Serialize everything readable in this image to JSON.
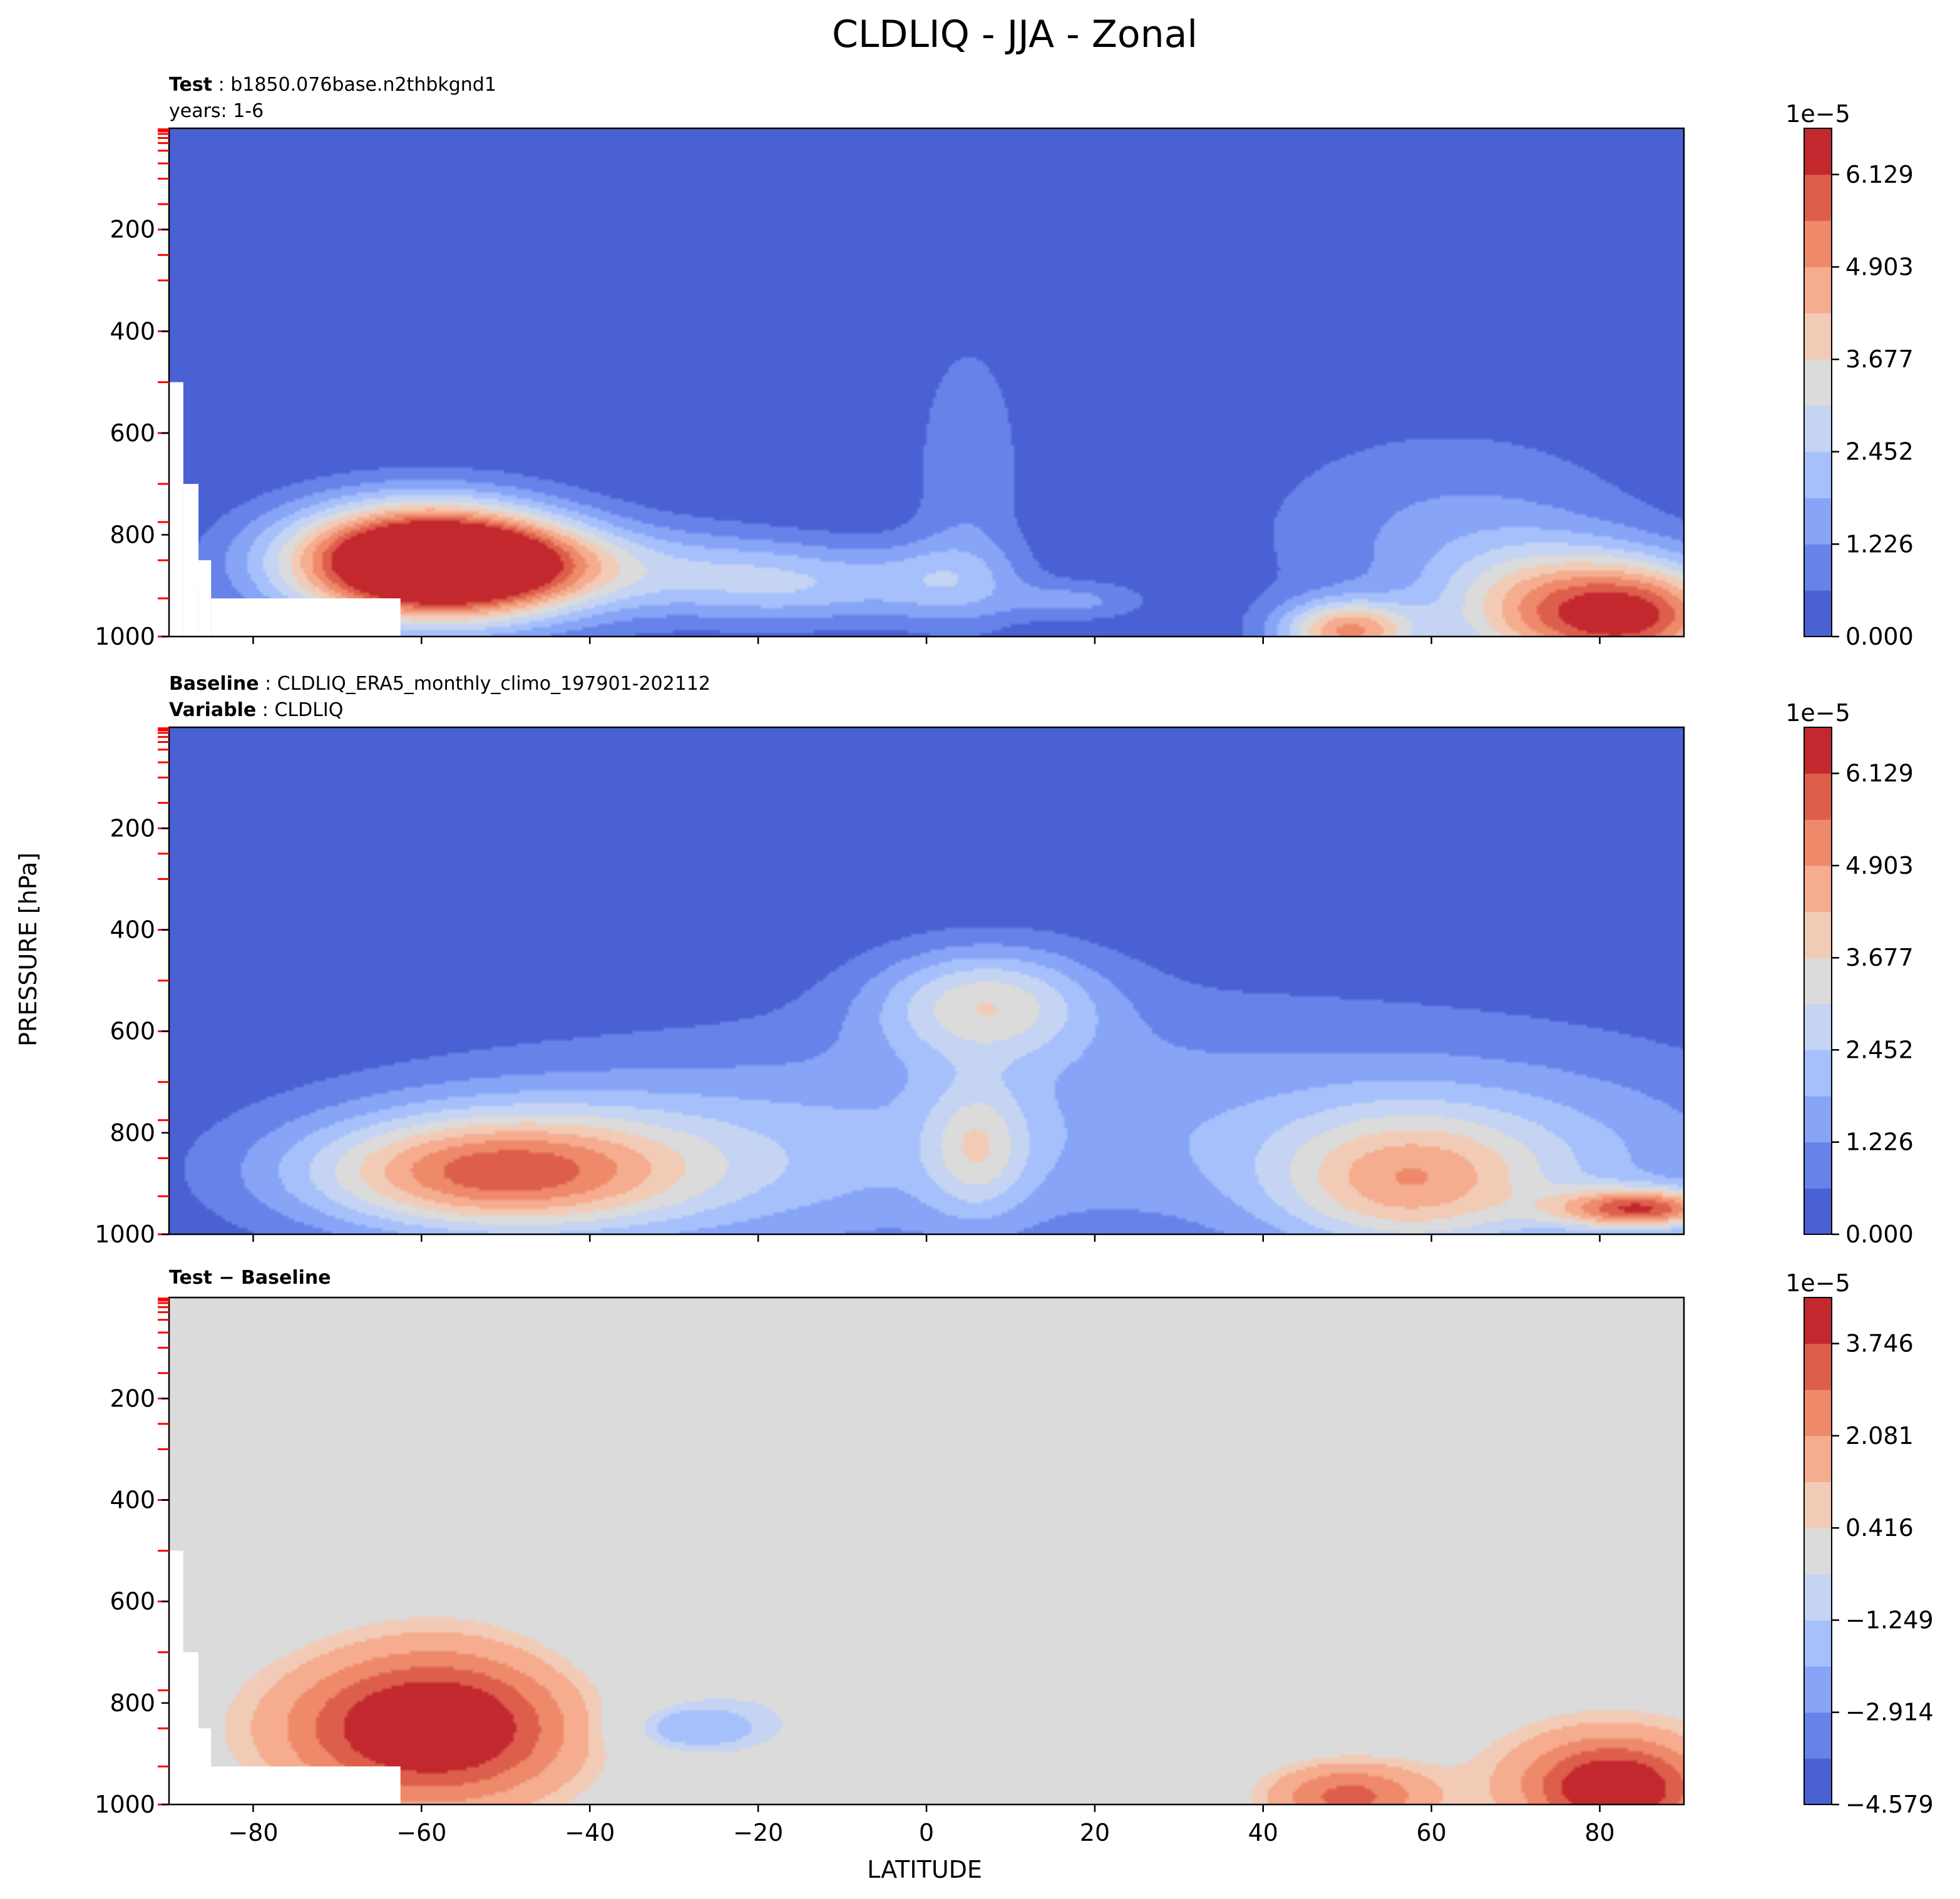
{
  "figure": {
    "title": "CLDLIQ - JJA - Zonal",
    "xlabel": "LATITUDE",
    "ylabel": "PRESSURE [hPa]"
  },
  "chart_data": [
    {
      "type": "heatmap",
      "id": "test",
      "header": [
        {
          "bold": "Test",
          "sep": " : ",
          "text": "b1850.076base.n2thbkgnd1"
        },
        {
          "bold": "",
          "sep": "",
          "text": "years: 1-6"
        }
      ],
      "xlim": [
        -90,
        90
      ],
      "ylim": [
        1000,
        1
      ],
      "y_inverted": true,
      "x_ticks": [
        -80,
        -60,
        -40,
        -20,
        0,
        20,
        40,
        60,
        80
      ],
      "y_ticks": [
        200,
        400,
        600,
        800,
        1000
      ],
      "show_x_tick_labels": false,
      "colorbar": {
        "multiplier": "1e−5",
        "vmin": 0.0,
        "vmax": 6.742,
        "ticks": [
          0.0,
          1.226,
          2.452,
          3.677,
          4.903,
          6.129
        ],
        "tick_labels": [
          "0.000",
          "1.226",
          "2.452",
          "3.677",
          "4.903",
          "6.129"
        ],
        "colors": [
          "#4a61d3",
          "#6683ea",
          "#87a4f6",
          "#a6c0fc",
          "#c5d4f3",
          "#dbdbdb",
          "#f2cbb7",
          "#f5ac8f",
          "#ee8969",
          "#dd5f4b",
          "#c2282e"
        ]
      },
      "background_color": "#4a61d3",
      "features": [
        {
          "lat": -60,
          "p": 845,
          "wlat": 16,
          "wp": 110,
          "peak": 6.5
        },
        {
          "lat": -53,
          "p": 860,
          "wlat": 14,
          "wp": 80,
          "peak": 3.0
        },
        {
          "lat": -58,
          "p": 880,
          "wlat": 20,
          "wp": 130,
          "peak": 2.2
        },
        {
          "lat": -30,
          "p": 870,
          "wlat": 18,
          "wp": 90,
          "peak": 1.6
        },
        {
          "lat": -15,
          "p": 900,
          "wlat": 14,
          "wp": 80,
          "peak": 1.7
        },
        {
          "lat": 5,
          "p": 680,
          "wlat": 7,
          "wp": 300,
          "peak": 1.1
        },
        {
          "lat": 2,
          "p": 890,
          "wlat": 10,
          "wp": 80,
          "peak": 1.5
        },
        {
          "lat": 18,
          "p": 930,
          "wlat": 8,
          "wp": 40,
          "peak": 1.3
        },
        {
          "lat": 62,
          "p": 800,
          "wlat": 24,
          "wp": 220,
          "peak": 1.3
        },
        {
          "lat": 50,
          "p": 990,
          "wlat": 8,
          "wp": 60,
          "peak": 4.5
        },
        {
          "lat": 72,
          "p": 950,
          "wlat": 12,
          "wp": 130,
          "peak": 3.0
        },
        {
          "lat": 85,
          "p": 960,
          "wlat": 12,
          "wp": 110,
          "peak": 5.4
        }
      ],
      "masked_regions": [
        {
          "lat_min": -90,
          "lat_max": -88.3,
          "p_min": 500,
          "p_max": 1000
        },
        {
          "lat_min": -88.3,
          "lat_max": -86.5,
          "p_min": 700,
          "p_max": 1000
        },
        {
          "lat_min": -86.5,
          "lat_max": -85,
          "p_min": 850,
          "p_max": 1000
        },
        {
          "lat_min": -85,
          "lat_max": -62.5,
          "p_min": 925,
          "p_max": 1000
        }
      ]
    },
    {
      "type": "heatmap",
      "id": "baseline",
      "header": [
        {
          "bold": "Baseline",
          "sep": " : ",
          "text": "CLDLIQ_ERA5_monthly_climo_197901-202112"
        },
        {
          "bold": "Variable",
          "sep": " : ",
          "text": "CLDLIQ"
        }
      ],
      "xlim": [
        -90,
        90
      ],
      "ylim": [
        1000,
        1
      ],
      "y_inverted": true,
      "x_ticks": [
        -80,
        -60,
        -40,
        -20,
        0,
        20,
        40,
        60,
        80
      ],
      "y_ticks": [
        200,
        400,
        600,
        800,
        1000
      ],
      "show_x_tick_labels": false,
      "colorbar": {
        "multiplier": "1e−5",
        "vmin": 0.0,
        "vmax": 6.742,
        "ticks": [
          0.0,
          1.226,
          2.452,
          3.677,
          4.903,
          6.129
        ],
        "tick_labels": [
          "0.000",
          "1.226",
          "2.452",
          "3.677",
          "4.903",
          "6.129"
        ],
        "colors": [
          "#4a61d3",
          "#6683ea",
          "#87a4f6",
          "#a6c0fc",
          "#c5d4f3",
          "#dbdbdb",
          "#f2cbb7",
          "#f5ac8f",
          "#ee8969",
          "#dd5f4b",
          "#c2282e"
        ]
      },
      "background_color": "#4a61d3",
      "features": [
        {
          "lat": -52,
          "p": 880,
          "wlat": 22,
          "wp": 110,
          "peak": 3.8
        },
        {
          "lat": -45,
          "p": 860,
          "wlat": 30,
          "wp": 160,
          "peak": 1.5
        },
        {
          "lat": -20,
          "p": 850,
          "wlat": 50,
          "wp": 230,
          "peak": 1.1
        },
        {
          "lat": 7,
          "p": 545,
          "wlat": 13,
          "wp": 110,
          "peak": 3.0
        },
        {
          "lat": 6,
          "p": 830,
          "wlat": 6,
          "wp": 130,
          "peak": 2.0
        },
        {
          "lat": 32,
          "p": 760,
          "wlat": 55,
          "wp": 270,
          "peak": 1.2
        },
        {
          "lat": 57,
          "p": 900,
          "wlat": 16,
          "wp": 140,
          "peak": 3.2
        },
        {
          "lat": 75,
          "p": 860,
          "wlat": 30,
          "wp": 200,
          "peak": 1.3
        },
        {
          "lat": 85,
          "p": 950,
          "wlat": 10,
          "wp": 40,
          "peak": 4.9
        }
      ],
      "masked_regions": []
    },
    {
      "type": "heatmap",
      "id": "difference",
      "header": [
        {
          "bold": "Test − Baseline",
          "sep": "",
          "text": ""
        }
      ],
      "xlim": [
        -90,
        90
      ],
      "ylim": [
        1000,
        1
      ],
      "y_inverted": true,
      "x_ticks": [
        -80,
        -60,
        -40,
        -20,
        0,
        20,
        40,
        60,
        80
      ],
      "x_tick_labels": [
        "−80",
        "−60",
        "−40",
        "−20",
        "0",
        "20",
        "40",
        "60",
        "80"
      ],
      "y_ticks": [
        200,
        400,
        600,
        800,
        1000
      ],
      "show_x_tick_labels": true,
      "colorbar": {
        "multiplier": "1e−5",
        "vmin": -4.579,
        "vmax": 4.578,
        "ticks": [
          -4.579,
          -2.914,
          -1.249,
          0.416,
          2.081,
          3.746
        ],
        "tick_labels": [
          "−4.579",
          "−2.914",
          "−1.249",
          "0.416",
          "2.081",
          "3.746"
        ],
        "colors": [
          "#4a61d3",
          "#6683ea",
          "#87a4f6",
          "#a6c0fc",
          "#c5d4f3",
          "#dbdbdb",
          "#f2cbb7",
          "#f5ac8f",
          "#ee8969",
          "#dd5f4b",
          "#c2282e"
        ]
      },
      "background_color": "#dbdbdb",
      "features": [
        {
          "lat": -60,
          "p": 850,
          "wlat": 18,
          "wp": 140,
          "peak": 3.9
        },
        {
          "lat": -56,
          "p": 830,
          "wlat": 16,
          "wp": 200,
          "peak": 1.6
        },
        {
          "lat": -28,
          "p": 850,
          "wlat": 8,
          "wp": 45,
          "peak": -1.7
        },
        {
          "lat": -20,
          "p": 720,
          "wlat": 30,
          "wp": 250,
          "peak": -0.7
        },
        {
          "lat": 25,
          "p": 700,
          "wlat": 18,
          "wp": 200,
          "peak": -0.6
        },
        {
          "lat": 55,
          "p": 700,
          "wlat": 16,
          "wp": 130,
          "peak": -0.6
        },
        {
          "lat": 50,
          "p": 985,
          "wlat": 10,
          "wp": 70,
          "peak": 3.2
        },
        {
          "lat": 82,
          "p": 975,
          "wlat": 10,
          "wp": 90,
          "peak": 3.8
        },
        {
          "lat": 80,
          "p": 930,
          "wlat": 16,
          "wp": 130,
          "peak": 1.5
        }
      ],
      "masked_regions": [
        {
          "lat_min": -90,
          "lat_max": -88.3,
          "p_min": 500,
          "p_max": 1000
        },
        {
          "lat_min": -88.3,
          "lat_max": -86.5,
          "p_min": 700,
          "p_max": 1000
        },
        {
          "lat_min": -86.5,
          "lat_max": -85,
          "p_min": 850,
          "p_max": 1000
        },
        {
          "lat_min": -85,
          "lat_max": -62.5,
          "p_min": 925,
          "p_max": 1000
        }
      ]
    }
  ],
  "model_levels_hPa": [
    3,
    5,
    7,
    12,
    20,
    30,
    45,
    70,
    100,
    150,
    200,
    250,
    300,
    400,
    500,
    600,
    700,
    775,
    850,
    925,
    1000
  ],
  "level_marker_color": "#ff0000"
}
